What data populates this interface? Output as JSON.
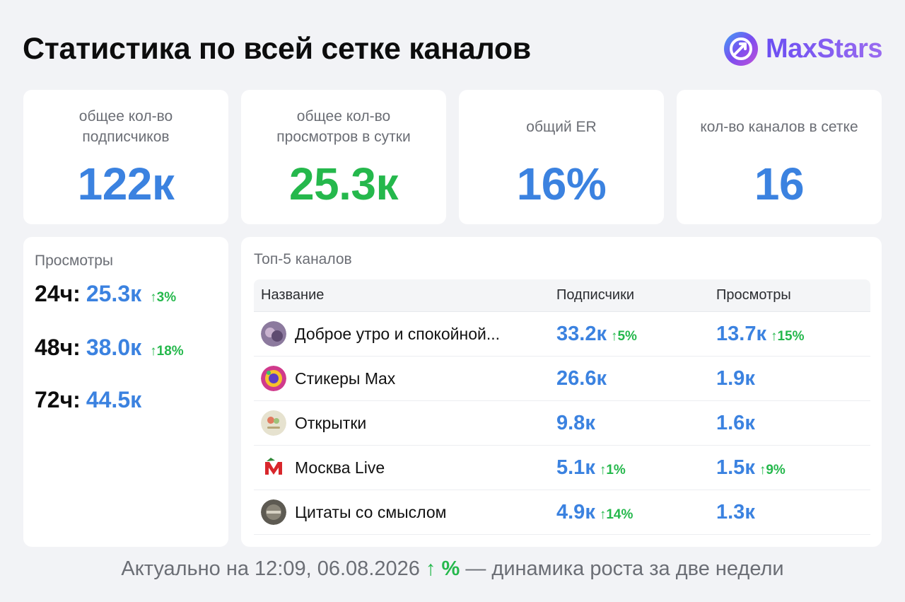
{
  "header": {
    "title": "Статистика по всей сетке каналов",
    "brand_name": "MaxStars"
  },
  "stats": [
    {
      "label": "общее кол-во подписчиков",
      "value": "122к",
      "color": "#3b82e0"
    },
    {
      "label": "общее кол-во просмотров в сутки",
      "value": "25.3к",
      "color": "#25b84c"
    },
    {
      "label": "общий ER",
      "value": "16%",
      "color": "#3b82e0"
    },
    {
      "label": "кол-во каналов в сетке",
      "value": "16",
      "color": "#3b82e0"
    }
  ],
  "views": {
    "title": "Просмотры",
    "rows": [
      {
        "period": "24ч:",
        "value": "25.3к",
        "delta": "↑3%"
      },
      {
        "period": "48ч:",
        "value": "38.0к",
        "delta": "↑18%"
      },
      {
        "period": "72ч:",
        "value": "44.5к",
        "delta": ""
      }
    ]
  },
  "top": {
    "title": "Топ-5 каналов",
    "columns": {
      "name": "Название",
      "subs": "Подписчики",
      "views": "Просмотры"
    },
    "rows": [
      {
        "name": "Доброе утро и спокойной...",
        "subs": "33.2к",
        "subs_delta": "↑5%",
        "views": "13.7к",
        "views_delta": "↑15%",
        "avatar_color": "#8c7a9e"
      },
      {
        "name": "Стикеры Max",
        "subs": "26.6к",
        "subs_delta": "",
        "views": "1.9к",
        "views_delta": "",
        "avatar_color": "#d03a8c"
      },
      {
        "name": "Открытки",
        "subs": "9.8к",
        "subs_delta": "",
        "views": "1.6к",
        "views_delta": "",
        "avatar_color": "#c9c2a4"
      },
      {
        "name": "Москва Live",
        "subs": "5.1к",
        "subs_delta": "↑1%",
        "views": "1.5к",
        "views_delta": "↑9%",
        "avatar_color": "#d8262b"
      },
      {
        "name": "Цитаты со смыслом",
        "subs": "4.9к",
        "subs_delta": "↑14%",
        "views": "1.3к",
        "views_delta": "",
        "avatar_color": "#5d5a52"
      }
    ]
  },
  "footer": {
    "prefix": "Актуально на 12:09, 06.08.2026",
    "accent": "↑ %",
    "suffix": "— динамика роста за две недели"
  }
}
